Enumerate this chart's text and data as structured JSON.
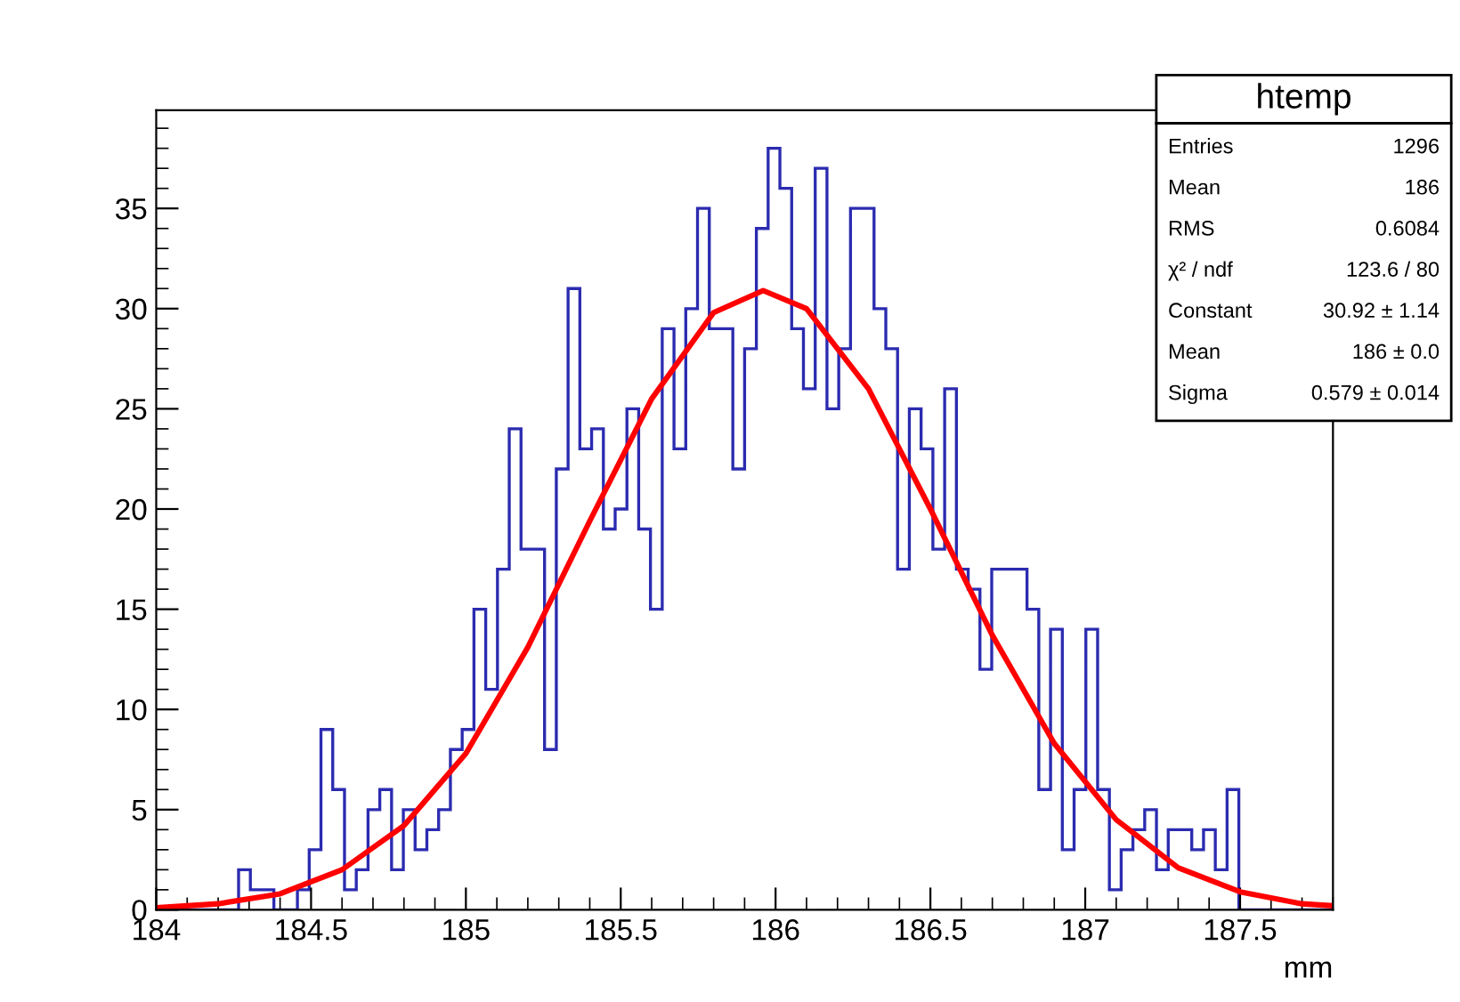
{
  "chart_data": {
    "type": "histogram",
    "xlabel": "mm",
    "xlim": [
      184,
      187.8
    ],
    "ylim": [
      0,
      39.9
    ],
    "xticks": [
      184,
      184.5,
      185,
      185.5,
      186,
      186.5,
      187,
      187.5
    ],
    "yticks": [
      0,
      5,
      10,
      15,
      20,
      25,
      30,
      35
    ],
    "grid": false,
    "legend": false,
    "annotations": [
      "htemp",
      "Entries",
      "1296",
      "Mean",
      "186",
      "RMS",
      "0.6084",
      "χ² / ndf",
      "123.6 / 80",
      "Constant",
      "30.92 ± 1.14",
      "Mean",
      "186 ± 0.0",
      "Sigma",
      "0.579 ± 0.014"
    ],
    "series": [
      {
        "color": "#2b2bb0",
        "bins": [
          184,
          184.038,
          184.076,
          184.114,
          184.152,
          184.19,
          184.228,
          184.266,
          184.304,
          184.342,
          184.38,
          184.418,
          184.456,
          184.494,
          184.532,
          184.57,
          184.608,
          184.646,
          184.684,
          184.722,
          184.76,
          184.798,
          184.836,
          184.874,
          184.912,
          184.95,
          184.988,
          185.026,
          185.064,
          185.102,
          185.14,
          185.178,
          185.216,
          185.254,
          185.292,
          185.33,
          185.368,
          185.406,
          185.444,
          185.482,
          185.52,
          185.558,
          185.596,
          185.634,
          185.672,
          185.71,
          185.748,
          185.786,
          185.824,
          185.862,
          185.9,
          185.938,
          185.976,
          186.014,
          186.052,
          186.09,
          186.128,
          186.166,
          186.204,
          186.242,
          186.28,
          186.318,
          186.356,
          186.394,
          186.432,
          186.47,
          186.508,
          186.546,
          186.584,
          186.622,
          186.66,
          186.698,
          186.736,
          186.774,
          186.812,
          186.85,
          186.888,
          186.926,
          186.964,
          187.002,
          187.04,
          187.078,
          187.116,
          187.154,
          187.192,
          187.23,
          187.268,
          187.306,
          187.344,
          187.382,
          187.42,
          187.458,
          187.496,
          187.534,
          187.572,
          187.61,
          187.648,
          187.686,
          187.724,
          187.762,
          187.8
        ],
        "values": [
          0,
          0,
          0,
          0,
          0,
          0,
          0,
          2,
          1,
          1,
          0,
          0,
          1,
          3,
          9,
          6,
          1,
          2,
          5,
          6,
          2,
          5,
          3,
          4,
          5,
          8,
          9,
          15,
          11,
          17,
          24,
          18,
          18,
          8,
          22,
          31,
          23,
          24,
          19,
          20,
          25,
          19,
          15,
          29,
          23,
          30,
          35,
          29,
          29,
          22,
          28,
          34,
          38,
          36,
          29,
          26,
          37,
          25,
          28,
          35,
          35,
          30,
          28,
          17,
          25,
          23,
          18,
          26,
          17,
          16,
          12,
          17,
          17,
          17,
          15,
          6,
          14,
          3,
          6,
          14,
          6,
          1,
          3,
          4,
          5,
          2,
          4,
          4,
          3,
          4,
          2,
          6,
          0,
          0,
          0,
          0,
          0,
          0,
          0,
          0
        ]
      },
      {
        "type": "line",
        "color": "#ff0000",
        "x": [
          184.0,
          184.2,
          184.4,
          184.6,
          184.8,
          185.0,
          185.2,
          185.4,
          185.6,
          185.8,
          185.96,
          186.1,
          186.3,
          186.5,
          186.7,
          186.9,
          187.1,
          187.3,
          187.5,
          187.7,
          187.8
        ],
        "values": [
          0.1,
          0.3,
          0.8,
          2.0,
          4.2,
          7.8,
          13.1,
          19.4,
          25.5,
          29.8,
          30.9,
          30.0,
          26.0,
          20.0,
          13.7,
          8.3,
          4.5,
          2.1,
          0.9,
          0.3,
          0.2
        ]
      }
    ]
  }
}
